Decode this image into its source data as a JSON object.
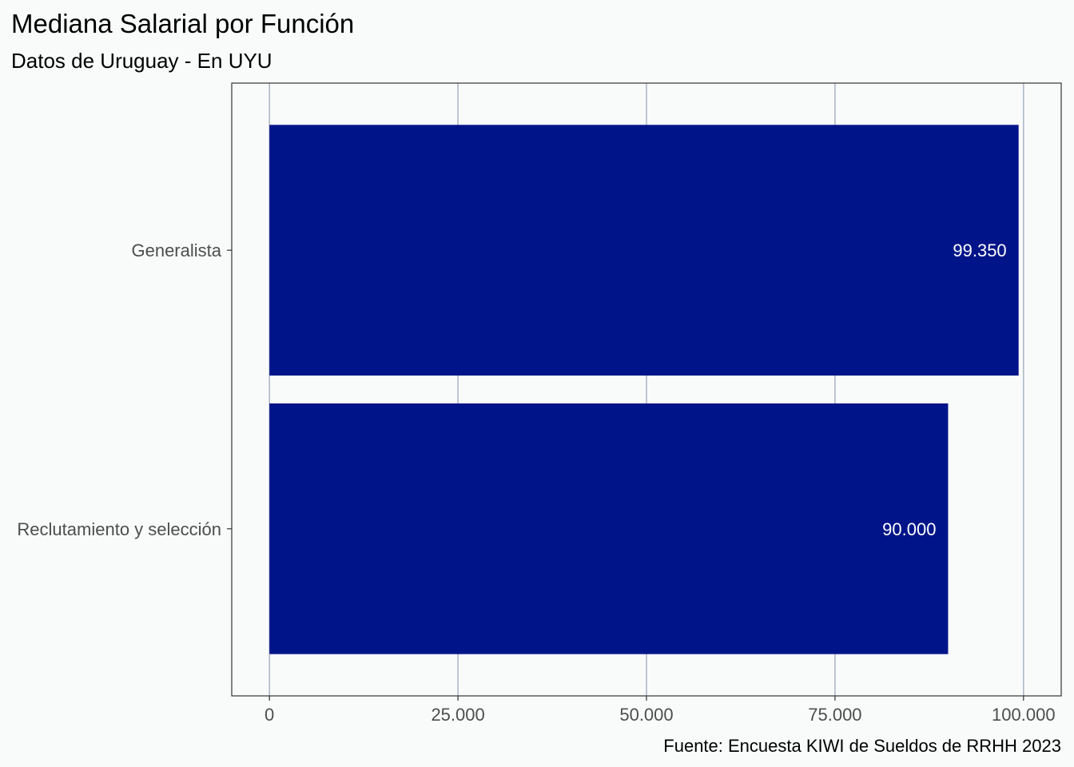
{
  "chart_data": {
    "type": "bar",
    "orientation": "horizontal",
    "title": "Mediana Salarial por Función",
    "subtitle": "Datos de Uruguay - En UYU",
    "caption": "Fuente: Encuesta KIWI de Sueldos de RRHH 2023",
    "xlabel": "",
    "ylabel": "",
    "categories": [
      "Generalista",
      "Reclutamiento y selección"
    ],
    "values": [
      99350,
      90000
    ],
    "value_labels": [
      "99.350",
      "90.000"
    ],
    "xlim": [
      -5000,
      105000
    ],
    "x_ticks": [
      0,
      25000,
      50000,
      75000,
      100000
    ],
    "x_tick_labels": [
      "0",
      "25.000",
      "50.000",
      "75.000",
      "100.000"
    ],
    "grid": "vertical major",
    "legend": "none",
    "colors": {
      "bar": "#001489",
      "background": "#f9fbfb",
      "grid": "#aab3c5",
      "axis_text": "#4d4d4d",
      "value_label": "#ffffff"
    }
  }
}
